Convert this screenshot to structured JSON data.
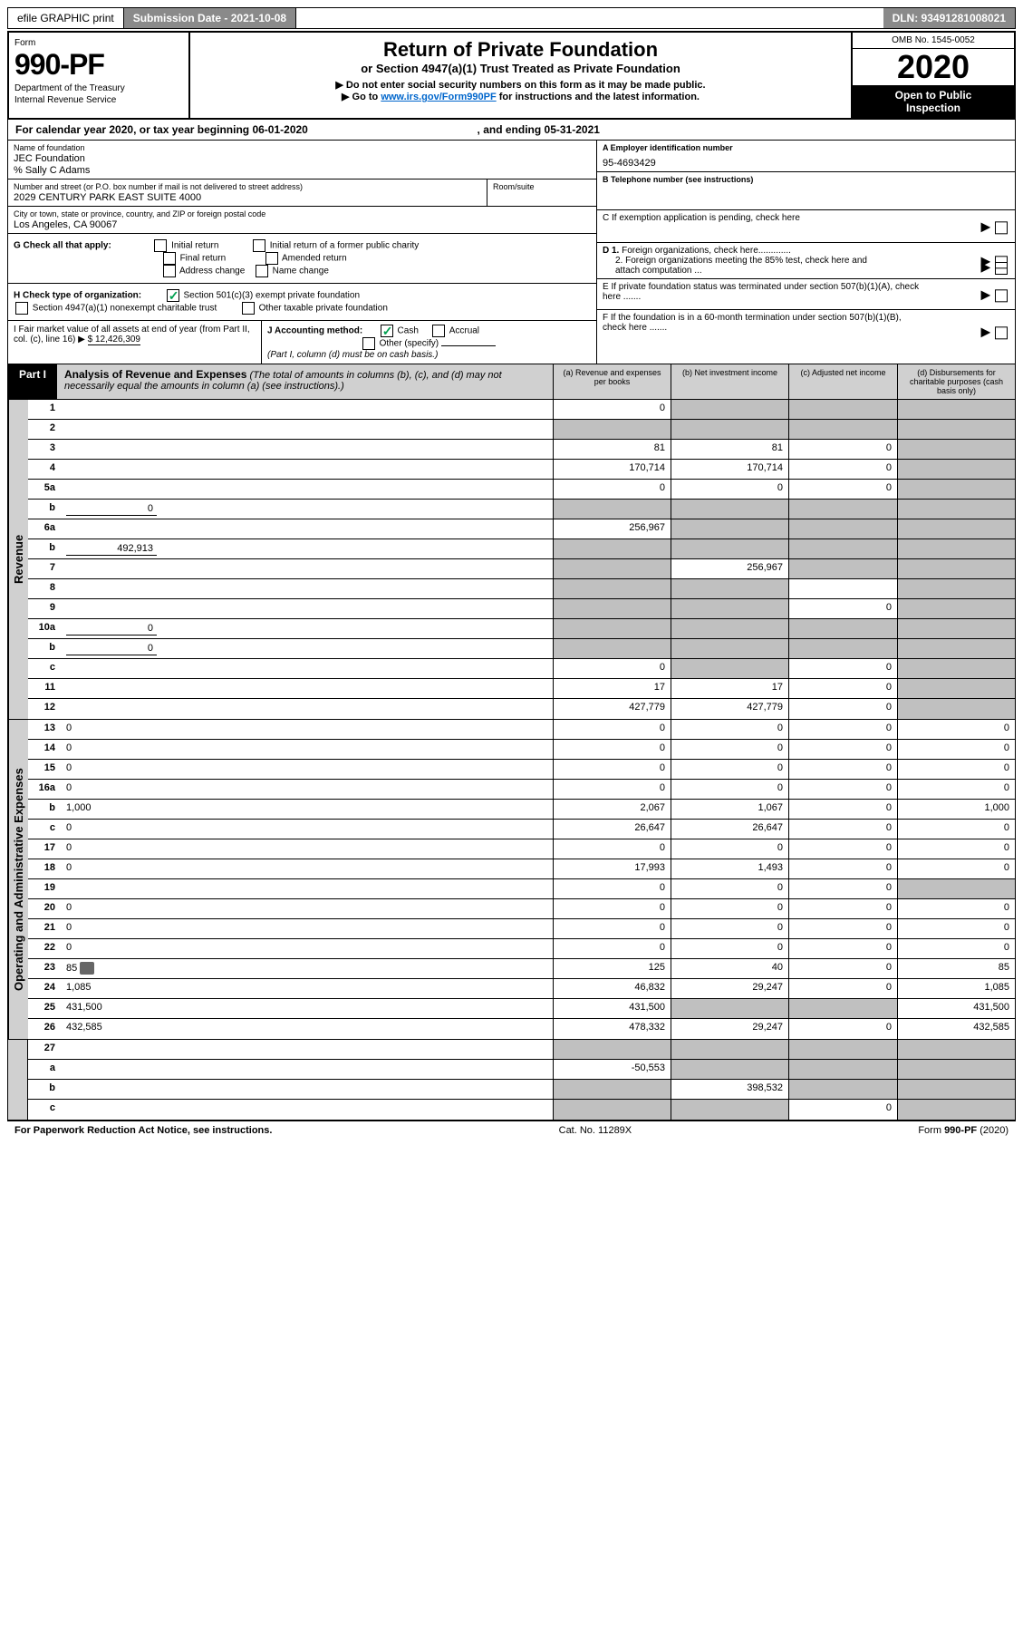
{
  "topbar": {
    "efile": "efile GRAPHIC print",
    "sub_date_label": "Submission Date - 2021-10-08",
    "dln": "DLN: 93491281008021"
  },
  "hdr": {
    "form_label": "Form",
    "form_number": "990-PF",
    "dept": "Department of the Treasury",
    "irs": "Internal Revenue Service",
    "title": "Return of Private Foundation",
    "subtitle": "or Section 4947(a)(1) Trust Treated as Private Foundation",
    "note1": "▶ Do not enter social security numbers on this form as it may be made public.",
    "note2": "▶ Go to ",
    "note2_link": "www.irs.gov/Form990PF",
    "note2_rest": " for instructions and the latest information.",
    "omb": "OMB No. 1545-0052",
    "year": "2020",
    "inspect1": "Open to Public",
    "inspect2": "Inspection"
  },
  "tax_year": {
    "pre": "For calendar year 2020, or tax year beginning ",
    "begin": "06-01-2020",
    "mid": ", and ending ",
    "end": "05-31-2021"
  },
  "info": {
    "name_lbl": "Name of foundation",
    "name": "JEC Foundation",
    "care_of": "% Sally C Adams",
    "addr_lbl": "Number and street (or P.O. box number if mail is not delivered to street address)",
    "addr": "2029 CENTURY PARK EAST SUITE 4000",
    "room_lbl": "Room/suite",
    "city_lbl": "City or town, state or province, country, and ZIP or foreign postal code",
    "city": "Los Angeles, CA   90067",
    "ein_lbl": "A Employer identification number",
    "ein": "95-4693429",
    "phone_lbl": "B Telephone number (see instructions)",
    "c_lbl": "C If exemption application is pending, check here",
    "d1_lbl": "D 1. Foreign organizations, check here.............",
    "d2_lbl": "2. Foreign organizations meeting the 85% test, check here and attach computation ...",
    "e_lbl": "E  If private foundation status was terminated under section 507(b)(1)(A), check here .......",
    "f_lbl": "F  If the foundation is in a 60-month termination under section 507(b)(1)(B), check here .......",
    "g_lbl": "G Check all that apply:",
    "g_initial": "Initial return",
    "g_final": "Final return",
    "g_addr": "Address change",
    "g_initial_pub": "Initial return of a former public charity",
    "g_amended": "Amended return",
    "g_name": "Name change",
    "h_lbl": "H Check type of organization:",
    "h_501": "Section 501(c)(3) exempt private foundation",
    "h_4947": "Section 4947(a)(1) nonexempt charitable trust",
    "h_other": "Other taxable private foundation",
    "i_lbl": "I Fair market value of all assets at end of year (from Part II, col. (c), line 16) ▶",
    "i_val": "$  12,426,309",
    "j_lbl": "J Accounting method:",
    "j_cash": "Cash",
    "j_accrual": "Accrual",
    "j_other": "Other (specify)",
    "j_note": "(Part I, column (d) must be on cash basis.)"
  },
  "part1": {
    "tab": "Part I",
    "title": "Analysis of Revenue and Expenses",
    "title_note": "(The total of amounts in columns (b), (c), and (d) may not necessarily equal the amounts in column (a) (see instructions).)",
    "col_a": "(a) Revenue and expenses per books",
    "col_b": "(b) Net investment income",
    "col_c": "(c) Adjusted net income",
    "col_d": "(d) Disbursements for charitable purposes (cash basis only)"
  },
  "sections": {
    "revenue": "Revenue",
    "expenses": "Operating and Administrative Expenses"
  },
  "rows": [
    {
      "n": "1",
      "d": "",
      "a": "0",
      "b": "",
      "c": "",
      "sa": false,
      "sb": true,
      "sc": true,
      "sd": true
    },
    {
      "n": "2",
      "d": "",
      "a": "",
      "b": "",
      "c": "",
      "sa": true,
      "sb": true,
      "sc": true,
      "sd": true
    },
    {
      "n": "3",
      "d": "",
      "a": "81",
      "b": "81",
      "c": "0",
      "sa": false,
      "sb": false,
      "sc": false,
      "sd": true
    },
    {
      "n": "4",
      "d": "",
      "a": "170,714",
      "b": "170,714",
      "c": "0",
      "sa": false,
      "sb": false,
      "sc": false,
      "sd": true
    },
    {
      "n": "5a",
      "d": "",
      "a": "0",
      "b": "0",
      "c": "0",
      "sa": false,
      "sb": false,
      "sc": false,
      "sd": true
    },
    {
      "n": "b",
      "d": "",
      "inline": "0",
      "a": "",
      "b": "",
      "c": "",
      "sa": true,
      "sb": true,
      "sc": true,
      "sd": true
    },
    {
      "n": "6a",
      "d": "",
      "a": "256,967",
      "b": "",
      "c": "",
      "sa": false,
      "sb": true,
      "sc": true,
      "sd": true
    },
    {
      "n": "b",
      "d": "",
      "inline": "492,913",
      "a": "",
      "b": "",
      "c": "",
      "sa": true,
      "sb": true,
      "sc": true,
      "sd": true
    },
    {
      "n": "7",
      "d": "",
      "a": "",
      "b": "256,967",
      "c": "",
      "sa": true,
      "sb": false,
      "sc": true,
      "sd": true
    },
    {
      "n": "8",
      "d": "",
      "a": "",
      "b": "",
      "c": "",
      "sa": true,
      "sb": true,
      "sc": false,
      "sd": true
    },
    {
      "n": "9",
      "d": "",
      "a": "",
      "b": "",
      "c": "0",
      "sa": true,
      "sb": true,
      "sc": false,
      "sd": true
    },
    {
      "n": "10a",
      "d": "",
      "inline": "0",
      "a": "",
      "b": "",
      "c": "",
      "sa": true,
      "sb": true,
      "sc": true,
      "sd": true
    },
    {
      "n": "b",
      "d": "",
      "inline": "0",
      "a": "",
      "b": "",
      "c": "",
      "sa": true,
      "sb": true,
      "sc": true,
      "sd": true
    },
    {
      "n": "c",
      "d": "",
      "a": "0",
      "b": "",
      "c": "0",
      "sa": false,
      "sb": true,
      "sc": false,
      "sd": true
    },
    {
      "n": "11",
      "d": "",
      "a": "17",
      "b": "17",
      "c": "0",
      "sa": false,
      "sb": false,
      "sc": false,
      "sd": true
    },
    {
      "n": "12",
      "d": "",
      "a": "427,779",
      "b": "427,779",
      "c": "0",
      "sa": false,
      "sb": false,
      "sc": false,
      "sd": true
    }
  ],
  "exp_rows": [
    {
      "n": "13",
      "d": "0",
      "a": "0",
      "b": "0",
      "c": "0"
    },
    {
      "n": "14",
      "d": "0",
      "a": "0",
      "b": "0",
      "c": "0"
    },
    {
      "n": "15",
      "d": "0",
      "a": "0",
      "b": "0",
      "c": "0"
    },
    {
      "n": "16a",
      "d": "0",
      "a": "0",
      "b": "0",
      "c": "0"
    },
    {
      "n": "b",
      "d": "1,000",
      "a": "2,067",
      "b": "1,067",
      "c": "0"
    },
    {
      "n": "c",
      "d": "0",
      "a": "26,647",
      "b": "26,647",
      "c": "0"
    },
    {
      "n": "17",
      "d": "0",
      "a": "0",
      "b": "0",
      "c": "0"
    },
    {
      "n": "18",
      "d": "0",
      "a": "17,993",
      "b": "1,493",
      "c": "0"
    },
    {
      "n": "19",
      "d": "",
      "a": "0",
      "b": "0",
      "c": "0",
      "sd": true
    },
    {
      "n": "20",
      "d": "0",
      "a": "0",
      "b": "0",
      "c": "0"
    },
    {
      "n": "21",
      "d": "0",
      "a": "0",
      "b": "0",
      "c": "0"
    },
    {
      "n": "22",
      "d": "0",
      "a": "0",
      "b": "0",
      "c": "0"
    },
    {
      "n": "23",
      "d": "85",
      "a": "125",
      "b": "40",
      "c": "0",
      "icon": true
    },
    {
      "n": "24",
      "d": "1,085",
      "a": "46,832",
      "b": "29,247",
      "c": "0"
    },
    {
      "n": "25",
      "d": "431,500",
      "a": "431,500",
      "b": "",
      "c": "",
      "sb": true,
      "sc": true
    },
    {
      "n": "26",
      "d": "432,585",
      "a": "478,332",
      "b": "29,247",
      "c": "0"
    }
  ],
  "bottom_rows": [
    {
      "n": "27",
      "d": "",
      "a": "",
      "b": "",
      "c": "",
      "sa": true,
      "sb": true,
      "sc": true,
      "sd": true
    },
    {
      "n": "a",
      "d": "",
      "a": "-50,553",
      "b": "",
      "c": "",
      "sb": true,
      "sc": true,
      "sd": true
    },
    {
      "n": "b",
      "d": "",
      "a": "",
      "b": "398,532",
      "c": "",
      "sa": true,
      "sc": true,
      "sd": true
    },
    {
      "n": "c",
      "d": "",
      "a": "",
      "b": "",
      "c": "0",
      "sa": true,
      "sb": true,
      "sd": true
    }
  ],
  "footer": {
    "left": "For Paperwork Reduction Act Notice, see instructions.",
    "mid": "Cat. No. 11289X",
    "right": "Form 990-PF (2020)"
  }
}
